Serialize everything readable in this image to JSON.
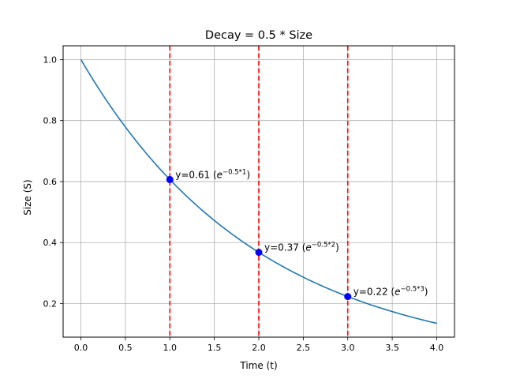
{
  "chart_data": {
    "type": "line",
    "title": "Decay = 0.5 * Size",
    "xlabel": "Time (t)",
    "ylabel": "Size (S)",
    "xlim": [
      -0.2,
      4.2
    ],
    "ylim": [
      0.09,
      1.045
    ],
    "grid": true,
    "x_ticks": [
      0.0,
      0.5,
      1.0,
      1.5,
      2.0,
      2.5,
      3.0,
      3.5,
      4.0
    ],
    "x_tick_labels": [
      "0.0",
      "0.5",
      "1.0",
      "1.5",
      "2.0",
      "2.5",
      "3.0",
      "3.5",
      "4.0"
    ],
    "y_ticks": [
      0.2,
      0.4,
      0.6,
      0.8,
      1.0
    ],
    "y_tick_labels": [
      "0.2",
      "0.4",
      "0.6",
      "0.8",
      "1.0"
    ],
    "series": [
      {
        "x": [
          0,
          0.25,
          0.5,
          0.75,
          1.0,
          1.25,
          1.5,
          1.75,
          2.0,
          2.25,
          2.5,
          2.75,
          3.0,
          3.25,
          3.5,
          3.75,
          4.0
        ],
        "values": [
          1.0,
          0.8825,
          0.7788,
          0.6873,
          0.6065,
          0.5353,
          0.4724,
          0.4169,
          0.3679,
          0.3247,
          0.2865,
          0.2528,
          0.2231,
          0.1969,
          0.1738,
          0.1534,
          0.1353
        ],
        "color": "#1f77b4"
      }
    ],
    "vlines": {
      "x": [
        1,
        2,
        3
      ],
      "color": "#ff0000",
      "style": "dashed"
    },
    "points": {
      "x": [
        1,
        2,
        3
      ],
      "y": [
        0.6065,
        0.3679,
        0.2231
      ],
      "color": "#0000ff"
    },
    "annotations": [
      {
        "x": 1,
        "y": 0.6065,
        "prefix": "y=0.61 (",
        "base": "e",
        "exponent": "−0.5*1",
        "suffix": ")"
      },
      {
        "x": 2,
        "y": 0.3679,
        "prefix": "y=0.37 (",
        "base": "e",
        "exponent": "−0.5*2",
        "suffix": ")"
      },
      {
        "x": 3,
        "y": 0.2231,
        "prefix": "y=0.22 (",
        "base": "e",
        "exponent": "−0.5*3",
        "suffix": ")"
      }
    ],
    "colors": {
      "grid": "#b0b0b0",
      "axes": "#000000"
    }
  }
}
